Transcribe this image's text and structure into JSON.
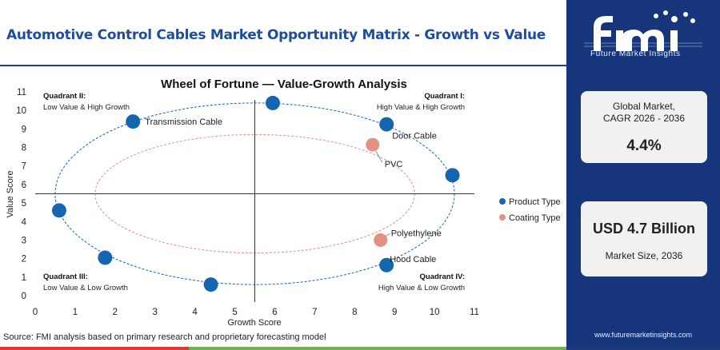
{
  "header": {
    "title": "Automotive Control Cables Market Opportunity Matrix - Growth vs Value"
  },
  "chart_data": {
    "type": "scatter",
    "title": "Wheel of Fortune — Value-Growth Analysis",
    "xlabel": "Growth Score",
    "ylabel": "Value Score",
    "xlim": [
      0,
      11
    ],
    "ylim": [
      0,
      11
    ],
    "xticks": [
      0,
      1,
      2,
      3,
      4,
      5,
      6,
      7,
      8,
      9,
      10,
      11
    ],
    "yticks": [
      0,
      1,
      2,
      3,
      4,
      5,
      6,
      7,
      8,
      9,
      10,
      11
    ],
    "dividers": {
      "x": 5.5,
      "y": 5.5
    },
    "quadrants": [
      {
        "name": "Quadrant II:",
        "desc": "Low Value & High Growth",
        "pos": "top-left"
      },
      {
        "name": "Quadrant I:",
        "desc": "High Value & High Growth",
        "pos": "top-right"
      },
      {
        "name": "Quadrant III:",
        "desc": "Low Value & Low Growth",
        "pos": "bottom-left"
      },
      {
        "name": "Quadrant IV:",
        "desc": "High Value & Low Growth",
        "pos": "bottom-right"
      }
    ],
    "ellipses": [
      {
        "series": "Product Type",
        "cx": 5.5,
        "cy": 5.5,
        "rx": 5.0,
        "ry": 4.9
      },
      {
        "series": "Coating Type",
        "cx": 5.5,
        "cy": 5.5,
        "rx": 4.0,
        "ry": 3.2
      }
    ],
    "series": [
      {
        "name": "Product Type",
        "color": "#1565b0",
        "points": [
          {
            "label": "",
            "x": 5.95,
            "y": 10.4
          },
          {
            "label": "Transmission Cable",
            "x": 2.45,
            "y": 9.4
          },
          {
            "label": "Door Cable",
            "x": 8.8,
            "y": 9.25
          },
          {
            "label": "",
            "x": 10.45,
            "y": 6.5
          },
          {
            "label": "",
            "x": 0.6,
            "y": 4.6
          },
          {
            "label": "",
            "x": 1.75,
            "y": 2.05
          },
          {
            "label": "Hood Cable",
            "x": 8.8,
            "y": 1.65
          },
          {
            "label": "",
            "x": 4.4,
            "y": 0.6
          }
        ]
      },
      {
        "name": "Coating Type",
        "color": "#e49181",
        "points": [
          {
            "label": "PVC",
            "x": 8.45,
            "y": 8.15
          },
          {
            "label": "Polyethylene",
            "x": 8.65,
            "y": 3.0
          }
        ]
      }
    ],
    "legend": {
      "position": "right",
      "entries": [
        "Product Type",
        "Coating Type"
      ]
    },
    "grid": false
  },
  "sidebar": {
    "logo_text": "Future Market Insights",
    "cagr_label": "Global Market,\nCAGR 2026 - 2036",
    "cagr_value": "4.4%",
    "size_value": "USD 4.7 Billion",
    "size_label": "Market Size, 2036",
    "website": "www.futuremarketinsights.com"
  },
  "footer": {
    "source": "Source: FMI analysis based on primary research and proprietary forecasting model"
  },
  "colors": {
    "brand_navy": "#16357a",
    "title_blue": "#1e4d9b",
    "product": "#1565b0",
    "coating": "#e49181",
    "bar_red": "#e03c2b",
    "bar_green": "#6fb44a"
  }
}
